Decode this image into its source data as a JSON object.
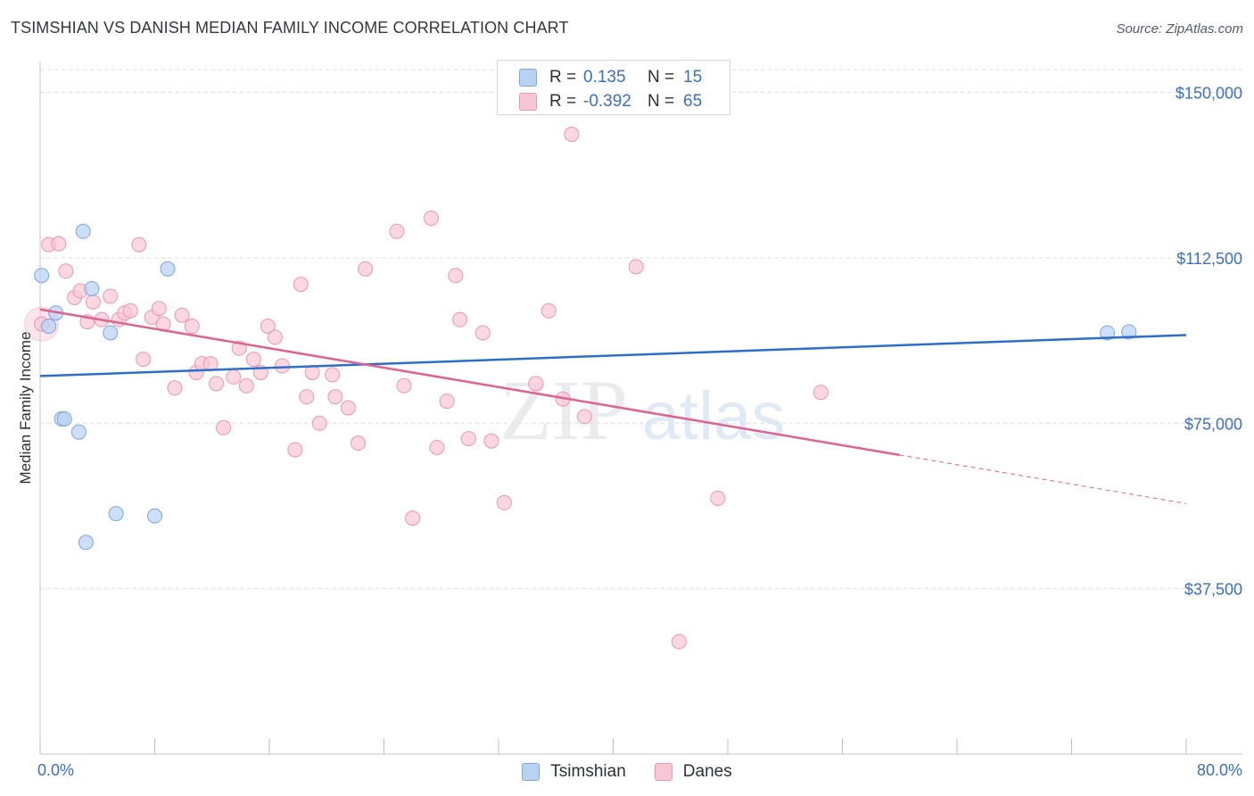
{
  "header": {
    "title": "TSIMSHIAN VS DANISH MEDIAN FAMILY INCOME CORRELATION CHART",
    "source": "Source: ZipAtlas.com"
  },
  "legend": {
    "series": [
      {
        "label": "Tsimshian",
        "r_label": "R =",
        "r_value": "0.135",
        "n_label": "N =",
        "n_value": "15"
      },
      {
        "label": "Danes",
        "r_label": "R =",
        "r_value": "-0.392",
        "n_label": "N =",
        "n_value": "65"
      }
    ]
  },
  "colors": {
    "tsimshian_fill": "#b8d2f4",
    "tsimshian_stroke": "#7aa6e0",
    "tsimshian_line": "#2c6fcb",
    "danes_fill": "#f9c6d6",
    "danes_stroke": "#e996b3",
    "danes_line": "#e0628f",
    "axis_text": "#3a6fc4",
    "grid": "#d9dce2"
  },
  "watermark": {
    "zip": "ZIP",
    "atlas": "atlas"
  },
  "chart_data": {
    "type": "scatter",
    "title": "TSIMSHIAN VS DANISH MEDIAN FAMILY INCOME CORRELATION CHART",
    "xlabel": "",
    "ylabel": "Median Family Income",
    "xlim": [
      0,
      80
    ],
    "ylim": [
      0,
      157000
    ],
    "x_tick_labels": [
      "0.0%",
      "80.0%"
    ],
    "y_ticks": [
      37500,
      75000,
      112500,
      150000
    ],
    "y_tick_labels": [
      "$37,500",
      "$75,000",
      "$112,500",
      "$150,000"
    ],
    "grid": true,
    "series": [
      {
        "name": "Tsimshian",
        "r": 0.135,
        "n": 15,
        "points": [
          [
            0.1,
            108500
          ],
          [
            0.6,
            97000
          ],
          [
            1.1,
            100000
          ],
          [
            1.5,
            76000
          ],
          [
            1.7,
            76000
          ],
          [
            2.7,
            73000
          ],
          [
            3.0,
            118500
          ],
          [
            3.2,
            48000
          ],
          [
            3.6,
            105500
          ],
          [
            4.9,
            95500
          ],
          [
            5.3,
            54500
          ],
          [
            8.0,
            54000
          ],
          [
            8.9,
            110000
          ],
          [
            74.5,
            95500
          ],
          [
            76.0,
            95700
          ]
        ],
        "trend": {
          "x_start": 0,
          "y_start": 85700,
          "x_end": 80,
          "y_end": 95000
        }
      },
      {
        "name": "Danes",
        "r": -0.392,
        "n": 65,
        "points": [
          [
            0.1,
            97500
          ],
          [
            0.6,
            115500
          ],
          [
            1.3,
            115700
          ],
          [
            1.8,
            109500
          ],
          [
            2.4,
            103500
          ],
          [
            2.8,
            105000
          ],
          [
            3.3,
            98000
          ],
          [
            3.7,
            102500
          ],
          [
            4.3,
            98500
          ],
          [
            4.9,
            103800
          ],
          [
            5.5,
            98500
          ],
          [
            5.9,
            100000
          ],
          [
            6.3,
            100500
          ],
          [
            6.9,
            115500
          ],
          [
            7.2,
            89500
          ],
          [
            7.8,
            99000
          ],
          [
            8.3,
            101000
          ],
          [
            8.6,
            97500
          ],
          [
            9.4,
            83000
          ],
          [
            9.9,
            99500
          ],
          [
            10.6,
            97000
          ],
          [
            10.9,
            86500
          ],
          [
            11.3,
            88500
          ],
          [
            11.9,
            88500
          ],
          [
            12.3,
            84000
          ],
          [
            12.8,
            74000
          ],
          [
            13.5,
            85500
          ],
          [
            13.9,
            92000
          ],
          [
            14.4,
            83500
          ],
          [
            14.9,
            89500
          ],
          [
            15.4,
            86500
          ],
          [
            15.9,
            97000
          ],
          [
            16.4,
            94500
          ],
          [
            16.9,
            88000
          ],
          [
            17.8,
            69000
          ],
          [
            18.2,
            106500
          ],
          [
            18.6,
            81000
          ],
          [
            19.0,
            86500
          ],
          [
            19.5,
            75000
          ],
          [
            20.4,
            86000
          ],
          [
            20.6,
            81000
          ],
          [
            21.5,
            78500
          ],
          [
            22.2,
            70500
          ],
          [
            22.7,
            110000
          ],
          [
            24.9,
            118500
          ],
          [
            25.4,
            83500
          ],
          [
            26.0,
            53500
          ],
          [
            27.3,
            121500
          ],
          [
            27.7,
            69500
          ],
          [
            28.4,
            80000
          ],
          [
            29.0,
            108500
          ],
          [
            29.3,
            98500
          ],
          [
            29.9,
            71500
          ],
          [
            30.9,
            95500
          ],
          [
            31.5,
            71000
          ],
          [
            32.4,
            57000
          ],
          [
            34.6,
            84000
          ],
          [
            35.5,
            100500
          ],
          [
            36.5,
            80500
          ],
          [
            37.1,
            140500
          ],
          [
            38.0,
            76500
          ],
          [
            41.6,
            110500
          ],
          [
            44.6,
            25500
          ],
          [
            47.3,
            58000
          ],
          [
            54.5,
            82000
          ]
        ],
        "trend": {
          "x_start": 0,
          "y_start": 100800,
          "x_end": 60,
          "y_end": 67800,
          "x_dash_end": 80,
          "y_dash_end": 56800
        }
      }
    ]
  }
}
